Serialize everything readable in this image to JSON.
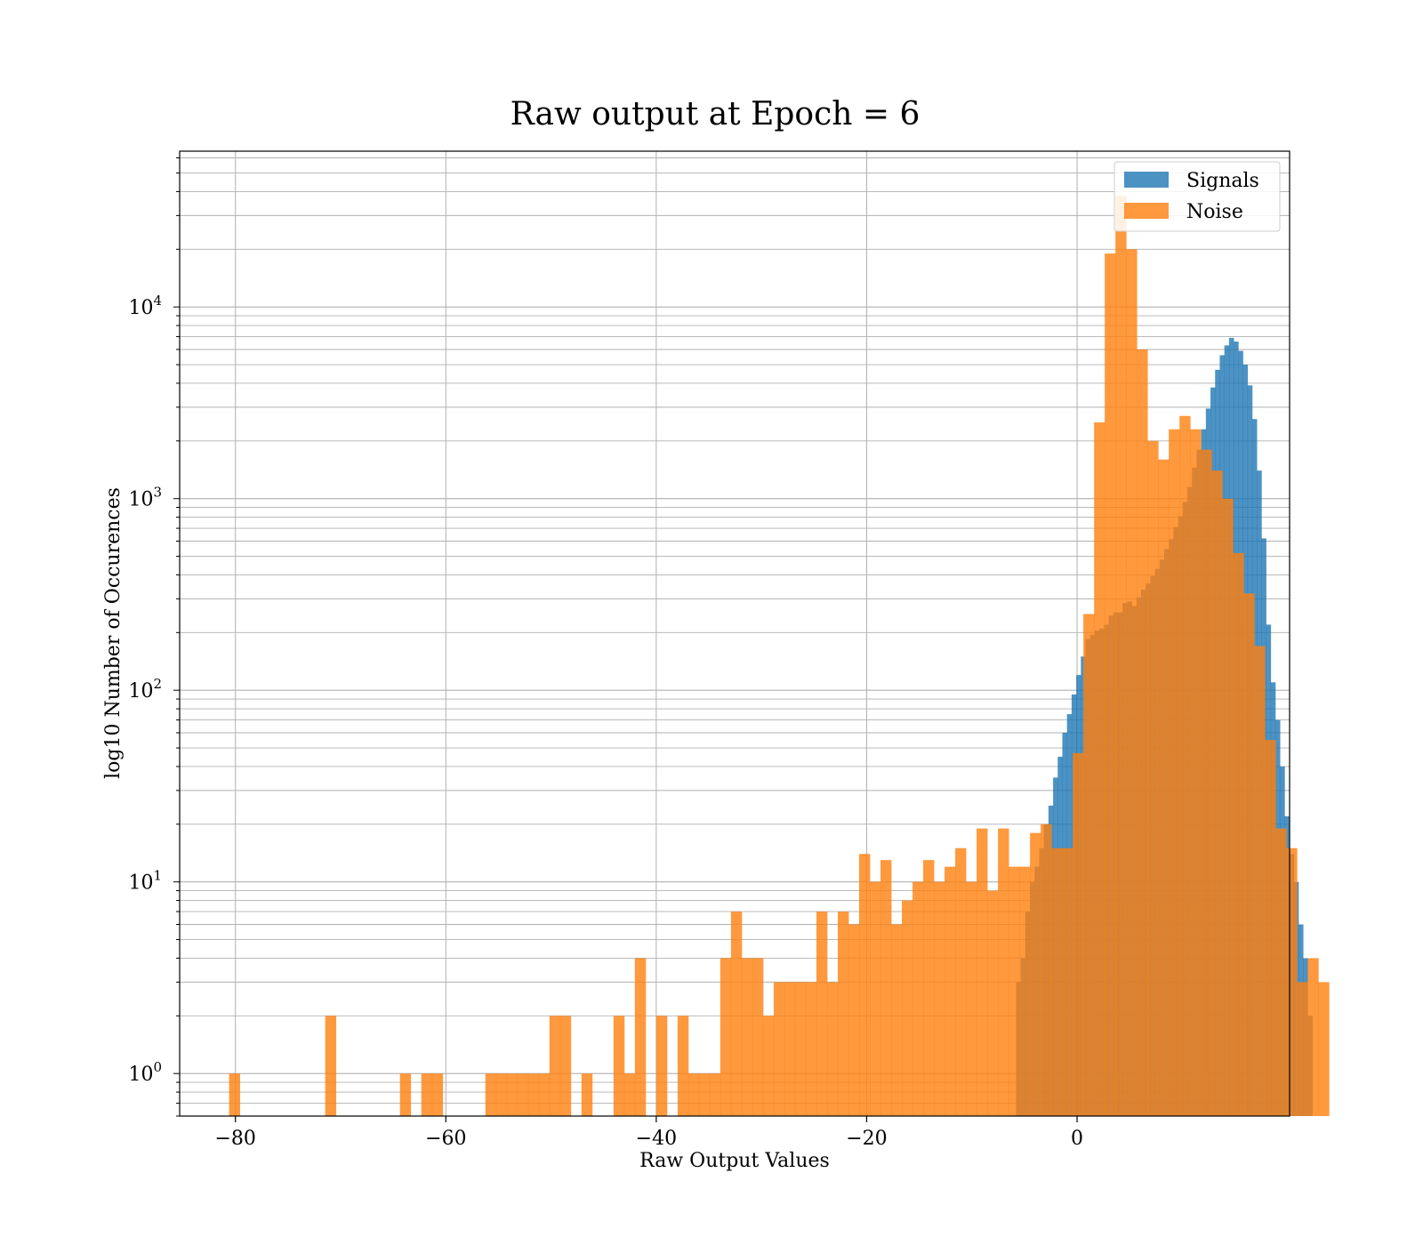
{
  "chart_data": {
    "type": "bar",
    "title": "Raw output at Epoch = 6",
    "xlabel": "Raw Output Values",
    "ylabel": "log10 Number of Occurences",
    "xlim": [
      -85.3,
      20.2
    ],
    "ylim": [
      0.6,
      65000
    ],
    "yscale": "log",
    "grid": true,
    "x_ticks": [
      {
        "value": -80,
        "label": "−80"
      },
      {
        "value": -60,
        "label": "−60"
      },
      {
        "value": -40,
        "label": "−40"
      },
      {
        "value": -20,
        "label": "−20"
      },
      {
        "value": 0,
        "label": "0"
      }
    ],
    "y_ticks": [
      {
        "value": 1,
        "base": "10",
        "exp": "0"
      },
      {
        "value": 10,
        "base": "10",
        "exp": "1"
      },
      {
        "value": 100,
        "base": "10",
        "exp": "2"
      },
      {
        "value": 1000,
        "base": "10",
        "exp": "3"
      },
      {
        "value": 10000,
        "base": "10",
        "exp": "4"
      }
    ],
    "legend": {
      "position": "upper-right"
    },
    "series": [
      {
        "name": "Signals",
        "color": "#1f77b4",
        "opacity": 0.8,
        "bin_start": -5.8,
        "bin_width": 0.44,
        "counts": [
          3,
          4,
          7,
          10,
          12,
          15,
          20,
          25,
          35,
          45,
          60,
          75,
          95,
          120,
          150,
          185,
          195,
          205,
          210,
          220,
          245,
          255,
          255,
          285,
          290,
          275,
          305,
          335,
          360,
          395,
          430,
          480,
          545,
          615,
          710,
          810,
          960,
          1150,
          1450,
          1800,
          2300,
          2950,
          3800,
          4700,
          5600,
          6300,
          6900,
          6600,
          5900,
          5000,
          3900,
          2600,
          1400,
          620,
          220,
          110,
          70,
          40,
          22,
          14,
          10,
          6,
          4,
          2
        ]
      },
      {
        "name": "Noise",
        "color": "#ff7f0e",
        "opacity": 0.8,
        "bin_start": -80.6,
        "bin_width": 1.015,
        "counts": [
          1,
          0,
          0,
          0,
          0,
          0,
          0,
          0,
          0,
          2,
          0,
          0,
          0,
          0,
          0,
          0,
          1,
          0,
          1,
          1,
          0,
          0,
          0,
          0,
          1,
          1,
          1,
          1,
          1,
          1,
          2,
          2,
          0,
          1,
          0,
          0,
          2,
          1,
          4,
          0,
          2,
          0,
          2,
          1,
          1,
          1,
          4,
          7,
          4,
          4,
          2,
          3,
          3,
          3,
          3,
          7,
          3,
          7,
          6,
          14,
          10,
          13,
          6,
          8,
          10,
          13,
          10,
          12,
          15,
          10,
          19,
          9,
          19,
          12,
          12,
          18,
          20,
          15,
          15,
          47,
          250,
          2500,
          19000,
          38000,
          20000,
          6000,
          2000,
          1600,
          2300,
          2700,
          2300,
          1800,
          1400,
          1000,
          520,
          320,
          170,
          55,
          19,
          15,
          3,
          4,
          3
        ]
      }
    ]
  }
}
